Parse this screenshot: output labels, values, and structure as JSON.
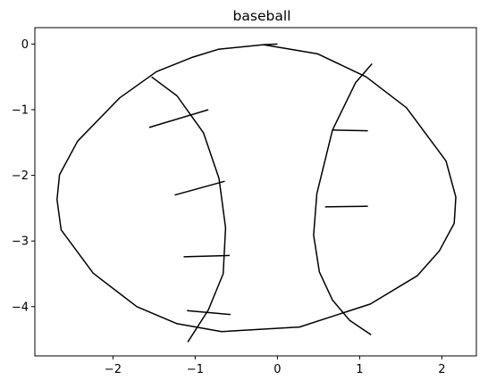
{
  "chart_data": {
    "type": "line",
    "title": "baseball",
    "xlabel": "",
    "ylabel": "",
    "xlim": [
      -2.95,
      2.42
    ],
    "ylim": [
      -4.75,
      0.25
    ],
    "xticks": [
      -2,
      -1,
      0,
      1,
      2
    ],
    "yticks": [
      0,
      -1,
      -2,
      -3,
      -4
    ],
    "xtick_labels": [
      "−2",
      "−1",
      "0",
      "1",
      "2"
    ],
    "ytick_labels": [
      "0",
      "−1",
      "−2",
      "−3",
      "−4"
    ],
    "grid": false,
    "line_color": "#000000",
    "series": [
      {
        "kind": "outline",
        "x": [
          -0.17,
          0.49,
          1.08,
          1.57,
          2.05,
          2.17,
          2.15,
          1.97,
          1.7,
          1.13,
          0.27,
          -0.68,
          -1.22,
          -1.71,
          -2.24,
          -2.63,
          -2.68,
          -2.65,
          -2.43,
          -1.92,
          -1.47,
          -1.03,
          -0.72,
          -0.17
        ],
        "y": [
          -0.01,
          -0.15,
          -0.5,
          -0.97,
          -1.78,
          -2.33,
          -2.73,
          -3.15,
          -3.53,
          -3.96,
          -4.31,
          -4.38,
          -4.26,
          -4.0,
          -3.49,
          -2.83,
          -2.37,
          -1.99,
          -1.48,
          -0.82,
          -0.42,
          -0.2,
          -0.08,
          -0.01
        ]
      },
      {
        "kind": "left-seam",
        "x": [
          -1.53,
          -1.22,
          -0.9,
          -0.71,
          -0.63,
          -0.66,
          -0.84,
          -1.09
        ],
        "y": [
          -0.5,
          -0.79,
          -1.35,
          -2.05,
          -2.8,
          -3.5,
          -4.05,
          -4.54
        ]
      },
      {
        "kind": "right-seam",
        "x": [
          1.15,
          0.95,
          0.67,
          0.48,
          0.44,
          0.51,
          0.67,
          0.88,
          1.14
        ],
        "y": [
          -0.3,
          -0.59,
          -1.31,
          -2.28,
          -2.91,
          -3.47,
          -3.9,
          -4.21,
          -4.43
        ]
      }
    ],
    "stitches": [
      {
        "x": [
          -1.56,
          -0.84
        ],
        "y": [
          -1.27,
          -1.0
        ]
      },
      {
        "x": [
          -1.25,
          -0.64
        ],
        "y": [
          -2.3,
          -2.09
        ]
      },
      {
        "x": [
          -1.14,
          -0.58
        ],
        "y": [
          -3.24,
          -3.22
        ]
      },
      {
        "x": [
          -1.1,
          -0.57
        ],
        "y": [
          -4.06,
          -4.12
        ]
      },
      {
        "x": [
          -0.17,
          0.0
        ],
        "y": [
          -0.01,
          0.0
        ]
      },
      {
        "x": [
          0.67,
          1.1
        ],
        "y": [
          -1.31,
          -1.32
        ]
      },
      {
        "x": [
          0.58,
          1.1
        ],
        "y": [
          -2.48,
          -2.47
        ]
      }
    ]
  }
}
